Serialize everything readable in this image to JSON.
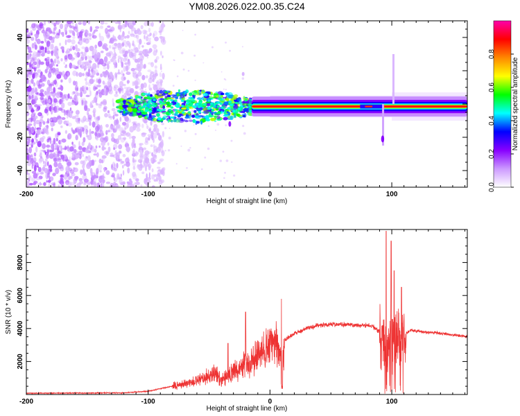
{
  "title": "YM08.2026.022.00.35.C24",
  "chart_data": [
    {
      "type": "heatmap",
      "name": "spectrogram",
      "xlabel": "Height of straight line (km)",
      "ylabel": "Frequency (Hz)",
      "xlim": [
        -200,
        162
      ],
      "ylim": [
        -50,
        50
      ],
      "xticks": [
        -200,
        -100,
        0,
        100
      ],
      "yticks": [
        -40,
        -20,
        0,
        20,
        40
      ],
      "colorbar": {
        "label": "Normalized spectral amplitude",
        "range": [
          0,
          1
        ],
        "ticks": [
          0.0,
          0.2,
          0.4,
          0.6,
          0.8
        ],
        "colormap": [
          "#ffffff",
          "#cc99ff",
          "#8800ff",
          "#0000ff",
          "#00ffff",
          "#00ff00",
          "#ffff00",
          "#ff8800",
          "#ff0000",
          "#ff00aa"
        ]
      },
      "features": {
        "noise_region_x": [
          -200,
          -95
        ],
        "main_band_freq": -1.5,
        "main_band_x": [
          -125,
          162
        ],
        "main_band_amplitude": 0.85,
        "spike_at_x": [
          100,
          92
        ],
        "spike_freq_range": [
          -25,
          30
        ]
      }
    },
    {
      "type": "line",
      "name": "snr",
      "xlabel": "Height of straight line (km)",
      "ylabel": "SNR (10 * v/v)",
      "xlim": [
        -200,
        162
      ],
      "ylim": [
        0,
        10000
      ],
      "xticks": [
        -200,
        -100,
        0,
        100
      ],
      "yticks": [
        2000,
        4000,
        6000,
        8000
      ],
      "color": "#ee3333",
      "profile": {
        "x": [
          -200,
          -120,
          -100,
          -80,
          -60,
          -50,
          -45,
          -40,
          -30,
          -20,
          -15,
          -10,
          0,
          5,
          10,
          12,
          20,
          30,
          40,
          50,
          60,
          70,
          80,
          85,
          90,
          95,
          100,
          105,
          110,
          115,
          120,
          140,
          162
        ],
        "y": [
          80,
          100,
          200,
          500,
          800,
          1100,
          1300,
          900,
          1400,
          1800,
          2000,
          2400,
          2900,
          3100,
          2200,
          3300,
          3700,
          4000,
          4200,
          4250,
          4250,
          4200,
          4200,
          4100,
          3800,
          2500,
          3600,
          3500,
          3600,
          3900,
          3850,
          3700,
          3500
        ]
      },
      "spikes": [
        {
          "x": -34.5,
          "y": 3100
        },
        {
          "x": -20,
          "y": 5000
        },
        {
          "x": 9.5,
          "y": 5800
        },
        {
          "x": 95.5,
          "y": 9900
        },
        {
          "x": 99.5,
          "y": 9300
        },
        {
          "x": 102,
          "y": 7500
        },
        {
          "x": 108,
          "y": 6500
        }
      ]
    }
  ]
}
